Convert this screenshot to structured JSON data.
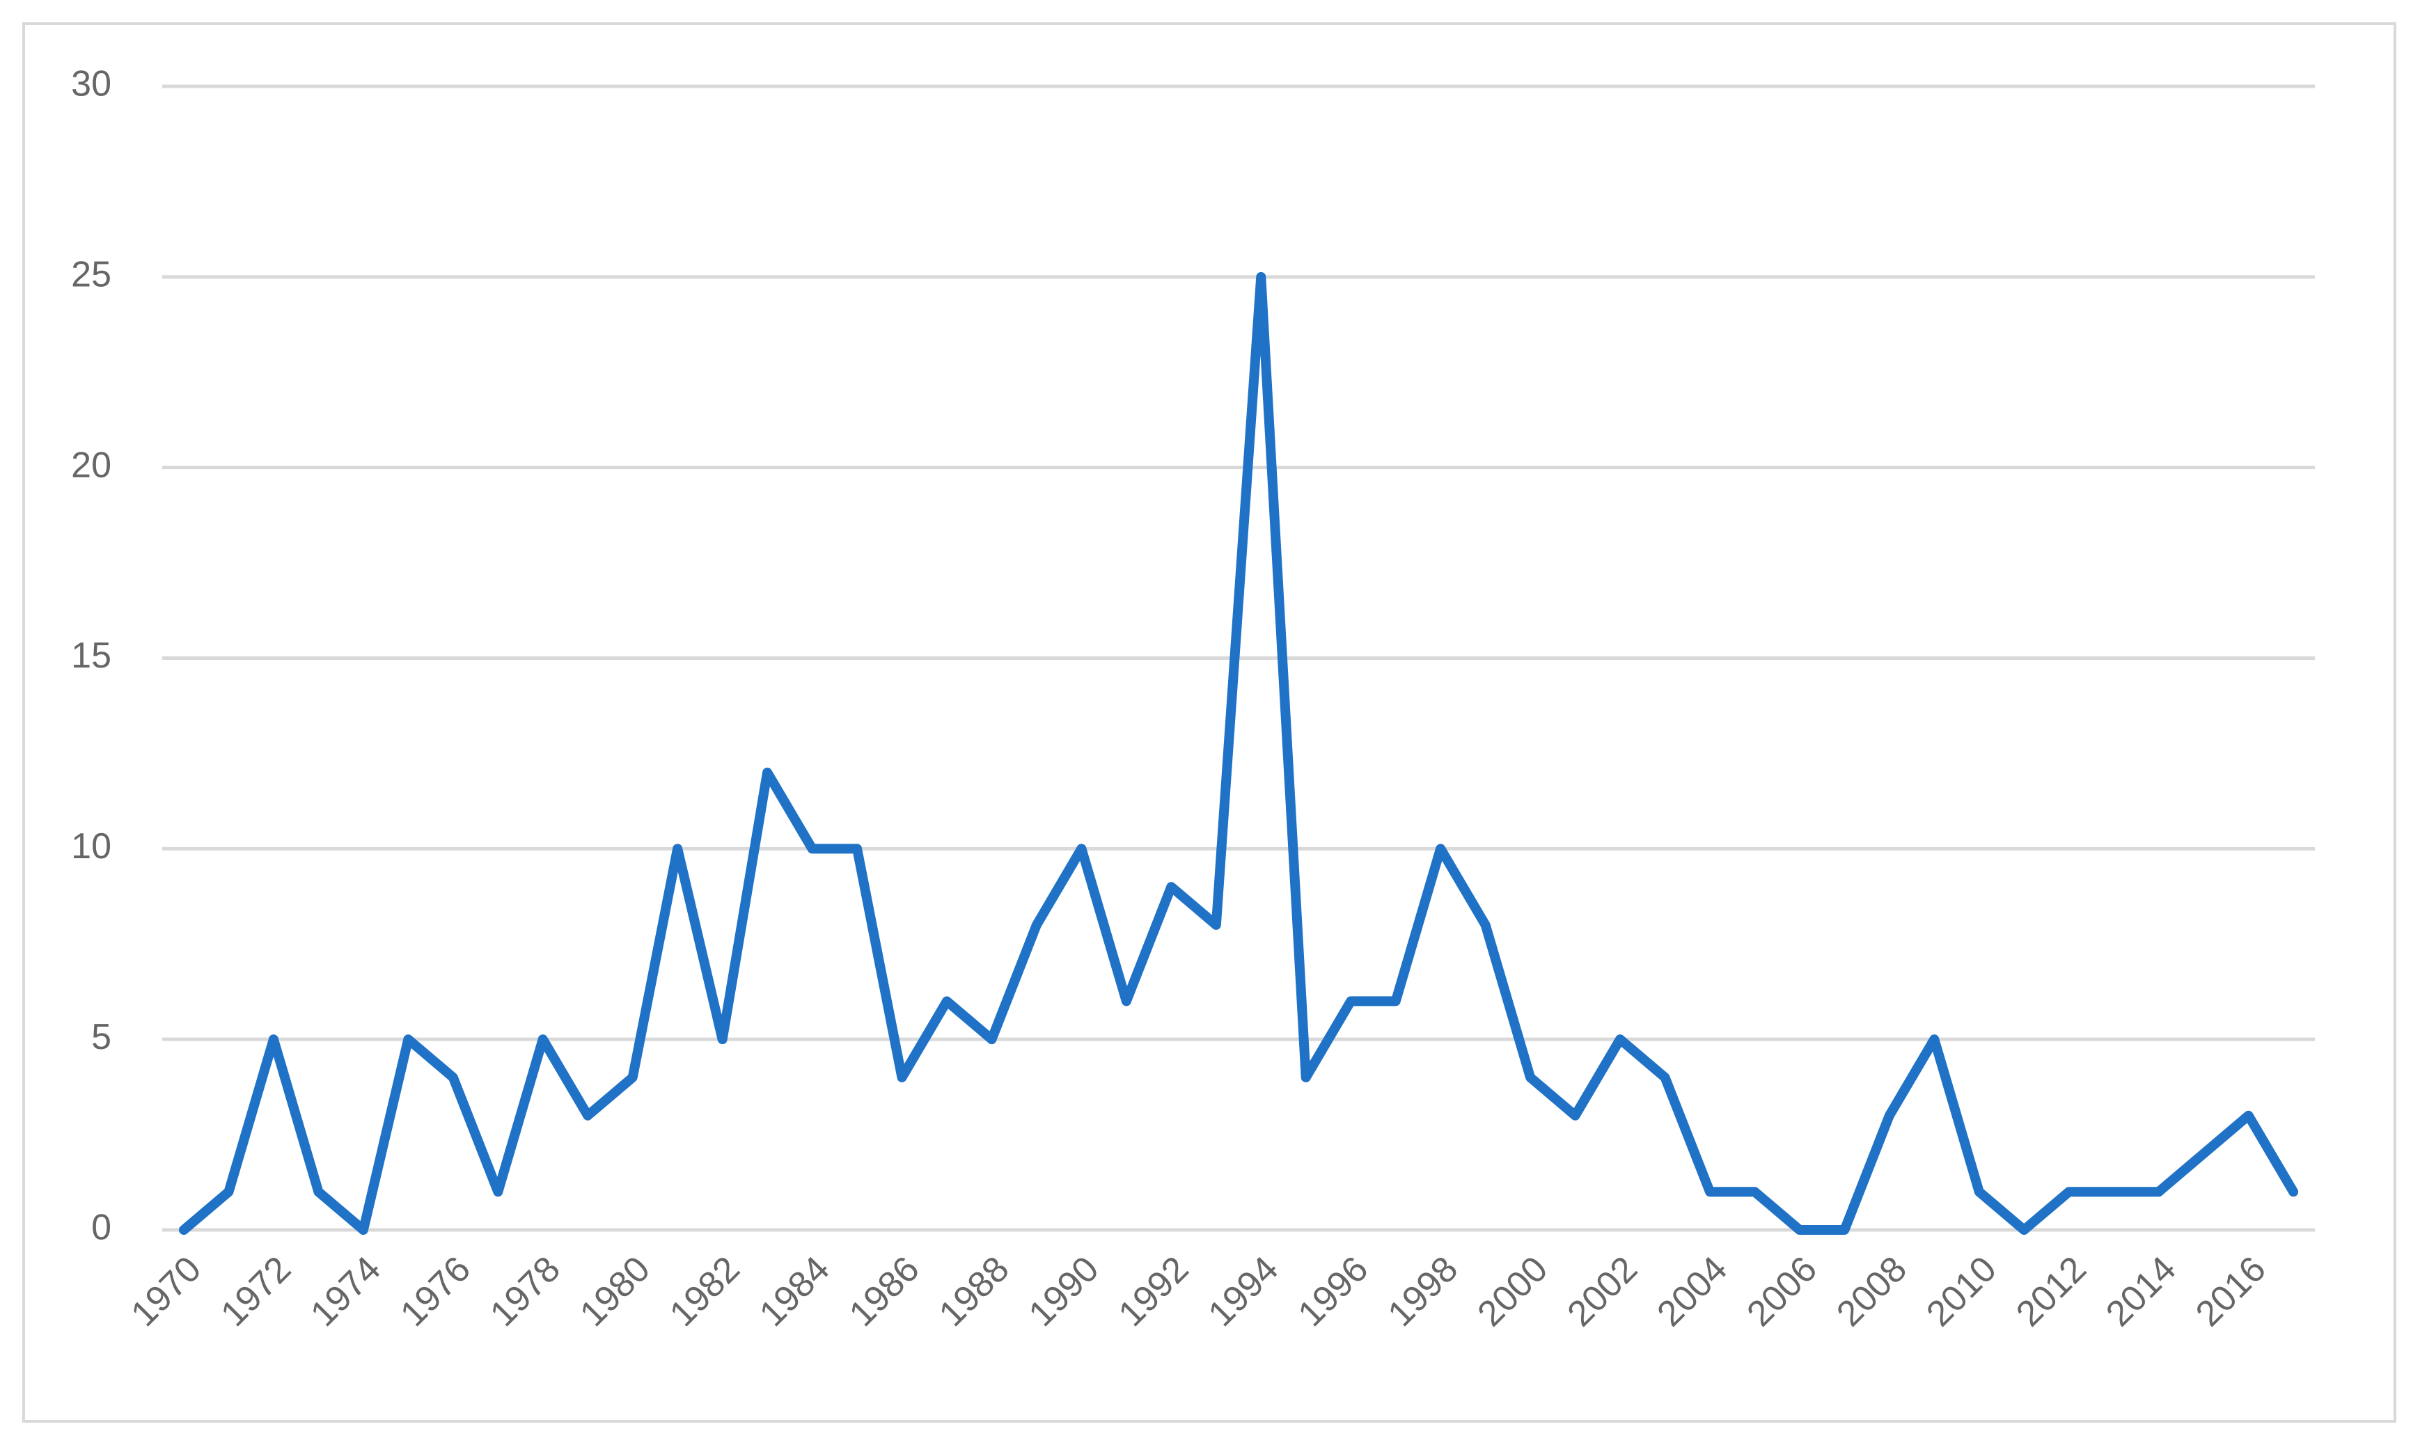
{
  "chart_data": {
    "type": "line",
    "categories": [
      "1970",
      null,
      "1972",
      null,
      "1974",
      null,
      "1976",
      null,
      "1978",
      null,
      "1980",
      null,
      "1982",
      null,
      "1984",
      null,
      "1986",
      null,
      "1988",
      null,
      "1990",
      null,
      "1992",
      null,
      "1994",
      null,
      "1996",
      null,
      "1998",
      null,
      "2000",
      null,
      "2002",
      null,
      "2004",
      null,
      "2006",
      null,
      "2008",
      null,
      "2010",
      null,
      "2012",
      null,
      "2014",
      null,
      "2016",
      null
    ],
    "values": [
      0,
      1,
      5,
      1,
      0,
      5,
      4,
      1,
      5,
      3,
      4,
      10,
      5,
      12,
      10,
      10,
      4,
      6,
      5,
      8,
      10,
      6,
      9,
      8,
      25,
      4,
      6,
      6,
      10,
      8,
      4,
      3,
      5,
      4,
      1,
      1,
      0,
      0,
      3,
      5,
      1,
      0,
      1,
      1,
      1,
      2,
      3,
      1
    ],
    "color": "#1f72c6",
    "ylim": [
      0,
      30
    ],
    "yticks": [
      0,
      5,
      10,
      15,
      20,
      25,
      30
    ],
    "grid": true
  }
}
